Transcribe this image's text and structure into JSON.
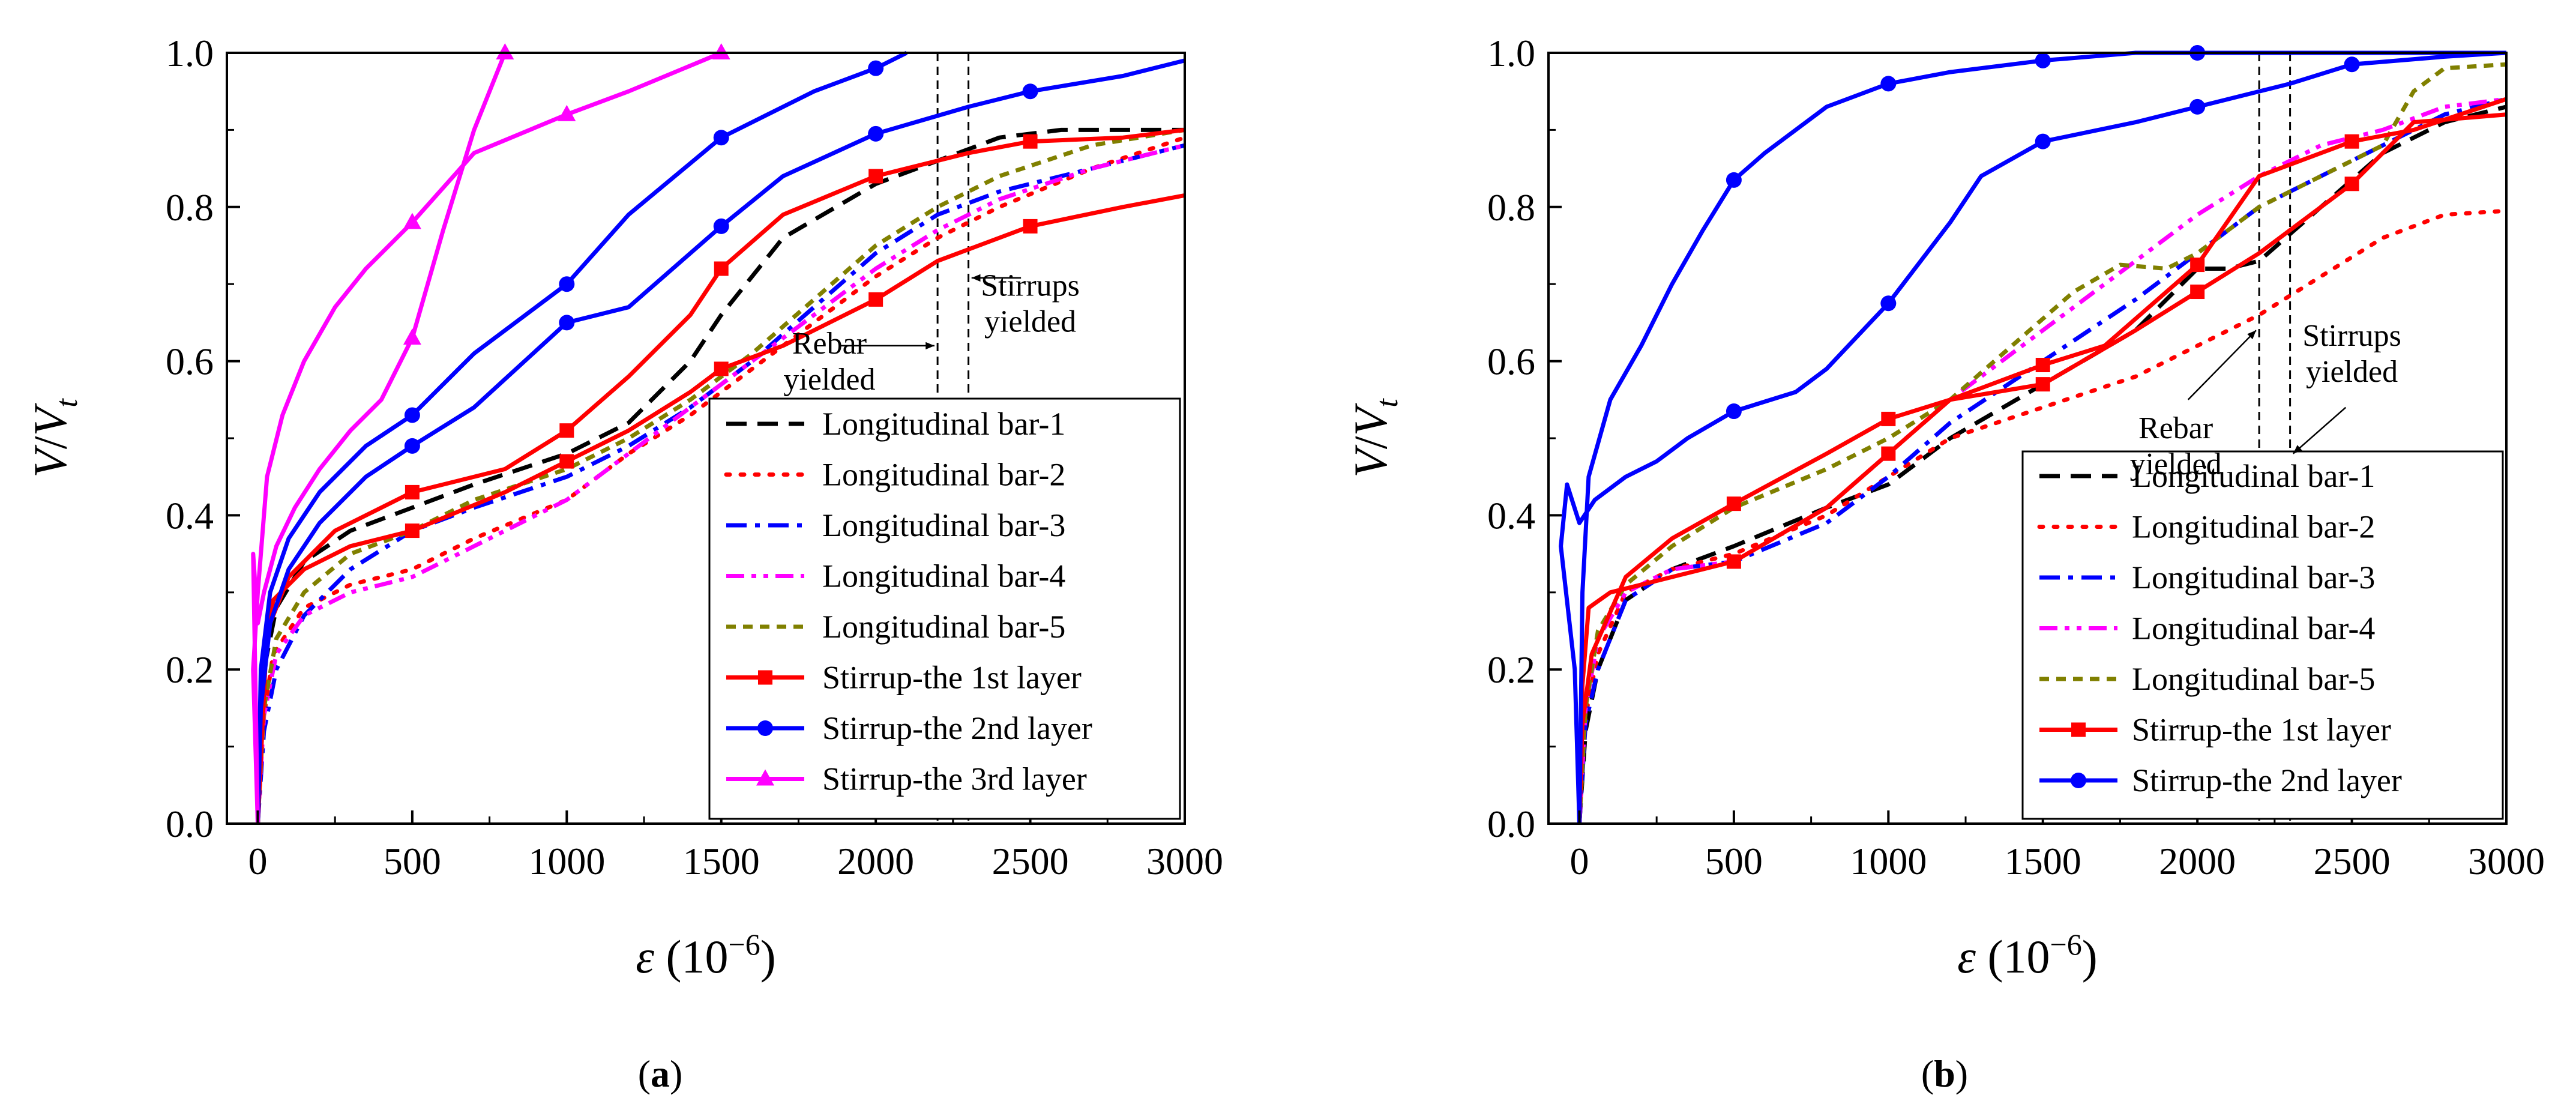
{
  "y_label": {
    "main": "V",
    "sep": "/",
    "main2": "V",
    "sub": "t"
  },
  "x_label": {
    "sym": "ε",
    "pre": " (10",
    "exp": "−6",
    "post": ")"
  },
  "y_ticks": [
    "0.0",
    "0.2",
    "0.4",
    "0.6",
    "0.8",
    "1.0"
  ],
  "x_ticks": [
    "0",
    "500",
    "1000",
    "1500",
    "2000",
    "2500",
    "3000"
  ],
  "colors": {
    "black": "#000000",
    "red": "#ff0000",
    "blue": "#0000ff",
    "magenta": "#ff00ff",
    "olive": "#808000"
  },
  "chart_data": [
    {
      "type": "line",
      "panel_label": {
        "open": "(",
        "letter": "a",
        "close": ")"
      },
      "xlim": [
        -100,
        3000
      ],
      "ylim": [
        0,
        1
      ],
      "vlines": [
        2200,
        2300
      ],
      "annotations": [
        {
          "lines": [
            "Rebar",
            "yielded"
          ],
          "x": 1850,
          "y": 0.61
        },
        {
          "lines": [
            "Stirrups",
            "yielded"
          ],
          "x": 2500,
          "y": 0.685
        }
      ],
      "series": [
        {
          "name": "Longitudinal bar-1",
          "style": "dash",
          "color": "#000000",
          "marker": "none",
          "x": [
            0,
            20,
            60,
            150,
            300,
            500,
            700,
            1000,
            1200,
            1400,
            1500,
            1700,
            2000,
            2200,
            2400,
            2600,
            3000
          ],
          "y": [
            0,
            0.2,
            0.28,
            0.34,
            0.38,
            0.41,
            0.44,
            0.48,
            0.52,
            0.6,
            0.66,
            0.76,
            0.83,
            0.86,
            0.89,
            0.9,
            0.9
          ]
        },
        {
          "name": "Longitudinal bar-2",
          "style": "dot",
          "color": "#ff0000",
          "marker": "none",
          "x": [
            0,
            20,
            50,
            150,
            300,
            500,
            700,
            1000,
            1200,
            1400,
            1700,
            2000,
            2200,
            2400,
            2700,
            3000
          ],
          "y": [
            0,
            0.14,
            0.22,
            0.28,
            0.31,
            0.33,
            0.37,
            0.42,
            0.48,
            0.53,
            0.62,
            0.71,
            0.76,
            0.8,
            0.85,
            0.89
          ]
        },
        {
          "name": "Longitudinal bar-3",
          "style": "dashdot",
          "color": "#0000ff",
          "marker": "none",
          "x": [
            0,
            20,
            60,
            150,
            300,
            500,
            700,
            1000,
            1200,
            1400,
            1600,
            1800,
            2000,
            2200,
            2400,
            2700,
            3000
          ],
          "y": [
            0,
            0.12,
            0.2,
            0.27,
            0.33,
            0.38,
            0.41,
            0.45,
            0.49,
            0.54,
            0.6,
            0.67,
            0.74,
            0.79,
            0.82,
            0.85,
            0.88
          ]
        },
        {
          "name": "Longitudinal bar-4",
          "style": "dashdotdot",
          "color": "#ff00ff",
          "marker": "none",
          "x": [
            0,
            20,
            60,
            150,
            300,
            500,
            700,
            1000,
            1200,
            1400,
            1600,
            1800,
            2000,
            2200,
            2400,
            2700,
            3000
          ],
          "y": [
            0,
            0.14,
            0.22,
            0.27,
            0.3,
            0.32,
            0.36,
            0.42,
            0.48,
            0.54,
            0.6,
            0.66,
            0.72,
            0.77,
            0.81,
            0.85,
            0.88
          ]
        },
        {
          "name": "Longitudinal bar-5",
          "style": "shortdash",
          "color": "#808000",
          "marker": "none",
          "x": [
            0,
            20,
            60,
            150,
            300,
            500,
            700,
            1000,
            1200,
            1400,
            1600,
            1800,
            2000,
            2200,
            2400,
            2700,
            3000
          ],
          "y": [
            0,
            0.15,
            0.24,
            0.3,
            0.35,
            0.38,
            0.42,
            0.46,
            0.5,
            0.55,
            0.61,
            0.68,
            0.75,
            0.8,
            0.84,
            0.88,
            0.9
          ]
        },
        {
          "name": "Stirrup-the 1st layer",
          "style": "solid",
          "color": "#ff0000",
          "marker": "square",
          "x": [
            0,
            15,
            50,
            150,
            300,
            500,
            800,
            1000,
            1200,
            1400,
            1500,
            1700,
            2000,
            2200,
            2500,
            2800,
            3000
          ],
          "y": [
            0,
            0.2,
            0.29,
            0.33,
            0.36,
            0.38,
            0.43,
            0.47,
            0.51,
            0.56,
            0.59,
            0.62,
            0.68,
            0.73,
            0.775,
            0.8,
            0.815
          ],
          "marker_x": [
            500,
            1000,
            1500,
            2000,
            2500
          ]
        },
        {
          "name": "Stirrup-the 1st layer (upper)",
          "style": "solid",
          "color": "#ff0000",
          "marker": "square",
          "in_legend": false,
          "x": [
            0,
            30,
            100,
            250,
            500,
            800,
            1000,
            1200,
            1400,
            1500,
            1700,
            2000,
            2300,
            2500,
            2800,
            3000
          ],
          "y": [
            0,
            0.25,
            0.32,
            0.38,
            0.43,
            0.46,
            0.51,
            0.58,
            0.66,
            0.72,
            0.79,
            0.84,
            0.87,
            0.885,
            0.89,
            0.9
          ],
          "marker_x": [
            500,
            1000,
            1500,
            2000,
            2500
          ]
        },
        {
          "name": "Stirrup-the 2nd layer",
          "style": "solid",
          "color": "#0000ff",
          "marker": "circle",
          "x": [
            0,
            10,
            40,
            100,
            200,
            350,
            500,
            700,
            1000,
            1200,
            1500,
            1700,
            2000,
            2300,
            2500,
            2800,
            3000
          ],
          "y": [
            0,
            0.15,
            0.26,
            0.33,
            0.39,
            0.45,
            0.49,
            0.54,
            0.65,
            0.67,
            0.775,
            0.84,
            0.895,
            0.93,
            0.95,
            0.97,
            0.99
          ],
          "marker_x": [
            500,
            1000,
            1500,
            2000,
            2500
          ]
        },
        {
          "name": "Stirrup-the 2nd layer (upper)",
          "style": "solid",
          "color": "#0000ff",
          "marker": "circle",
          "in_legend": false,
          "x": [
            0,
            10,
            40,
            100,
            200,
            350,
            500,
            700,
            1000,
            1200,
            1500,
            1800,
            2000,
            2100
          ],
          "y": [
            0,
            0.2,
            0.3,
            0.37,
            0.43,
            0.49,
            0.53,
            0.61,
            0.7,
            0.79,
            0.89,
            0.95,
            0.98,
            1.0
          ],
          "marker_x": [
            500,
            1000,
            1500,
            2000
          ]
        },
        {
          "name": "Stirrup-the 3rd layer",
          "style": "solid",
          "color": "#ff00ff",
          "marker": "triangle",
          "x": [
            0,
            -15,
            0,
            20,
            60,
            120,
            200,
            300,
            400,
            500,
            600,
            700,
            800
          ],
          "y": [
            0,
            0.35,
            0.26,
            0.3,
            0.36,
            0.41,
            0.46,
            0.51,
            0.55,
            0.63,
            0.77,
            0.9,
            1.0
          ],
          "marker_x": [
            500,
            800
          ]
        },
        {
          "name": "Stirrup-the 3rd layer (upper)",
          "style": "solid",
          "color": "#ff00ff",
          "marker": "triangle",
          "in_legend": false,
          "x": [
            0,
            -15,
            0,
            30,
            80,
            150,
            250,
            350,
            500,
            700,
            1000,
            1200,
            1500
          ],
          "y": [
            0,
            0.2,
            0.3,
            0.45,
            0.53,
            0.6,
            0.67,
            0.72,
            0.78,
            0.87,
            0.92,
            0.95,
            1.0
          ],
          "marker_x": [
            500,
            1000,
            1500
          ]
        }
      ]
    },
    {
      "type": "line",
      "panel_label": {
        "open": "(",
        "letter": "b",
        "close": ")"
      },
      "xlim": [
        -100,
        3000
      ],
      "ylim": [
        0,
        1
      ],
      "vlines": [
        2200,
        2300
      ],
      "annotations": [
        {
          "lines": [
            "Rebar",
            "yielded"
          ],
          "x": 1930,
          "y": 0.5
        },
        {
          "lines": [
            "Stirrups",
            "yielded"
          ],
          "x": 2500,
          "y": 0.62
        }
      ],
      "series": [
        {
          "name": "Longitudinal bar-1",
          "style": "dash",
          "color": "#000000",
          "marker": "none",
          "x": [
            0,
            20,
            60,
            150,
            300,
            500,
            800,
            1000,
            1200,
            1500,
            1800,
            2000,
            2100,
            2200,
            2400,
            2600,
            2800,
            3000
          ],
          "y": [
            0,
            0.12,
            0.2,
            0.29,
            0.33,
            0.36,
            0.41,
            0.44,
            0.5,
            0.57,
            0.64,
            0.72,
            0.72,
            0.73,
            0.8,
            0.87,
            0.91,
            0.93
          ]
        },
        {
          "name": "Longitudinal bar-2",
          "style": "dot",
          "color": "#ff0000",
          "marker": "none",
          "x": [
            0,
            20,
            60,
            150,
            300,
            500,
            800,
            1000,
            1200,
            1500,
            1800,
            2000,
            2200,
            2400,
            2600,
            2800,
            3000
          ],
          "y": [
            0,
            0.14,
            0.22,
            0.3,
            0.33,
            0.35,
            0.4,
            0.45,
            0.5,
            0.54,
            0.58,
            0.62,
            0.66,
            0.71,
            0.76,
            0.79,
            0.795
          ]
        },
        {
          "name": "Longitudinal bar-3",
          "style": "dashdot",
          "color": "#0000ff",
          "marker": "none",
          "x": [
            0,
            20,
            60,
            150,
            300,
            500,
            800,
            1000,
            1200,
            1500,
            1800,
            2000,
            2200,
            2400,
            2600,
            2800,
            3000
          ],
          "y": [
            0,
            0.13,
            0.2,
            0.29,
            0.33,
            0.34,
            0.39,
            0.45,
            0.52,
            0.6,
            0.68,
            0.74,
            0.8,
            0.84,
            0.88,
            0.92,
            0.94
          ]
        },
        {
          "name": "Longitudinal bar-4",
          "style": "dashdotdot",
          "color": "#ff00ff",
          "marker": "none",
          "x": [
            0,
            20,
            60,
            150,
            300,
            500,
            800,
            1000,
            1200,
            1500,
            1800,
            2000,
            2200,
            2400,
            2600,
            2800,
            3000
          ],
          "y": [
            0,
            0.15,
            0.24,
            0.3,
            0.33,
            0.34,
            0.41,
            0.48,
            0.55,
            0.64,
            0.73,
            0.79,
            0.84,
            0.88,
            0.9,
            0.93,
            0.94
          ]
        },
        {
          "name": "Longitudinal bar-5",
          "style": "shortdash",
          "color": "#808000",
          "marker": "none",
          "x": [
            0,
            20,
            60,
            150,
            300,
            500,
            800,
            1000,
            1200,
            1400,
            1600,
            1750,
            1900,
            2000,
            2200,
            2400,
            2600,
            2700,
            2800,
            3000
          ],
          "y": [
            0,
            0.15,
            0.25,
            0.31,
            0.36,
            0.41,
            0.46,
            0.5,
            0.55,
            0.62,
            0.69,
            0.725,
            0.72,
            0.74,
            0.8,
            0.84,
            0.88,
            0.95,
            0.98,
            0.985
          ]
        },
        {
          "name": "Stirrup-the 1st layer",
          "style": "solid",
          "color": "#ff0000",
          "marker": "square",
          "x": [
            0,
            10,
            30,
            100,
            300,
            500,
            800,
            1000,
            1200,
            1500,
            1800,
            2000,
            2200,
            2500,
            2700,
            3000
          ],
          "y": [
            0,
            0.18,
            0.28,
            0.3,
            0.32,
            0.34,
            0.41,
            0.48,
            0.55,
            0.57,
            0.64,
            0.69,
            0.74,
            0.83,
            0.91,
            0.92
          ],
          "marker_x": [
            500,
            1000,
            1500,
            2000,
            2500
          ]
        },
        {
          "name": "Stirrup-the 1st layer (upper)",
          "style": "solid",
          "color": "#ff0000",
          "marker": "square",
          "in_legend": false,
          "x": [
            0,
            10,
            40,
            150,
            300,
            500,
            800,
            1000,
            1200,
            1500,
            1700,
            2000,
            2200,
            2500,
            2700,
            3000
          ],
          "y": [
            0,
            0.13,
            0.22,
            0.32,
            0.37,
            0.415,
            0.48,
            0.525,
            0.55,
            0.595,
            0.62,
            0.725,
            0.84,
            0.885,
            0.9,
            0.94
          ],
          "marker_x": [
            500,
            1000,
            1500,
            2000,
            2500
          ]
        },
        {
          "name": "Stirrup-the 2nd layer",
          "style": "solid",
          "color": "#0000ff",
          "marker": "circle",
          "x": [
            0,
            -15,
            -60,
            -40,
            0,
            50,
            150,
            250,
            350,
            500,
            700,
            800,
            1000,
            1200,
            1300,
            1500,
            1800,
            2000,
            2300,
            2500,
            2800,
            3000
          ],
          "y": [
            0,
            0.2,
            0.36,
            0.44,
            0.39,
            0.42,
            0.45,
            0.47,
            0.5,
            0.535,
            0.56,
            0.59,
            0.675,
            0.78,
            0.84,
            0.885,
            0.91,
            0.93,
            0.96,
            0.985,
            0.995,
            1.0
          ],
          "marker_x": [
            500,
            1000,
            1500,
            2000,
            2500
          ]
        },
        {
          "name": "Stirrup-the 2nd layer (upper)",
          "style": "solid",
          "color": "#0000ff",
          "marker": "circle",
          "in_legend": false,
          "x": [
            0,
            10,
            30,
            100,
            200,
            300,
            400,
            500,
            600,
            800,
            1000,
            1200,
            1500,
            1800,
            2000,
            2500,
            3000
          ],
          "y": [
            0,
            0.3,
            0.45,
            0.55,
            0.62,
            0.7,
            0.77,
            0.835,
            0.87,
            0.93,
            0.96,
            0.975,
            0.99,
            1.0,
            1.0,
            1.0,
            1.0
          ],
          "marker_x": [
            500,
            1000,
            1500,
            2000
          ]
        }
      ]
    }
  ]
}
